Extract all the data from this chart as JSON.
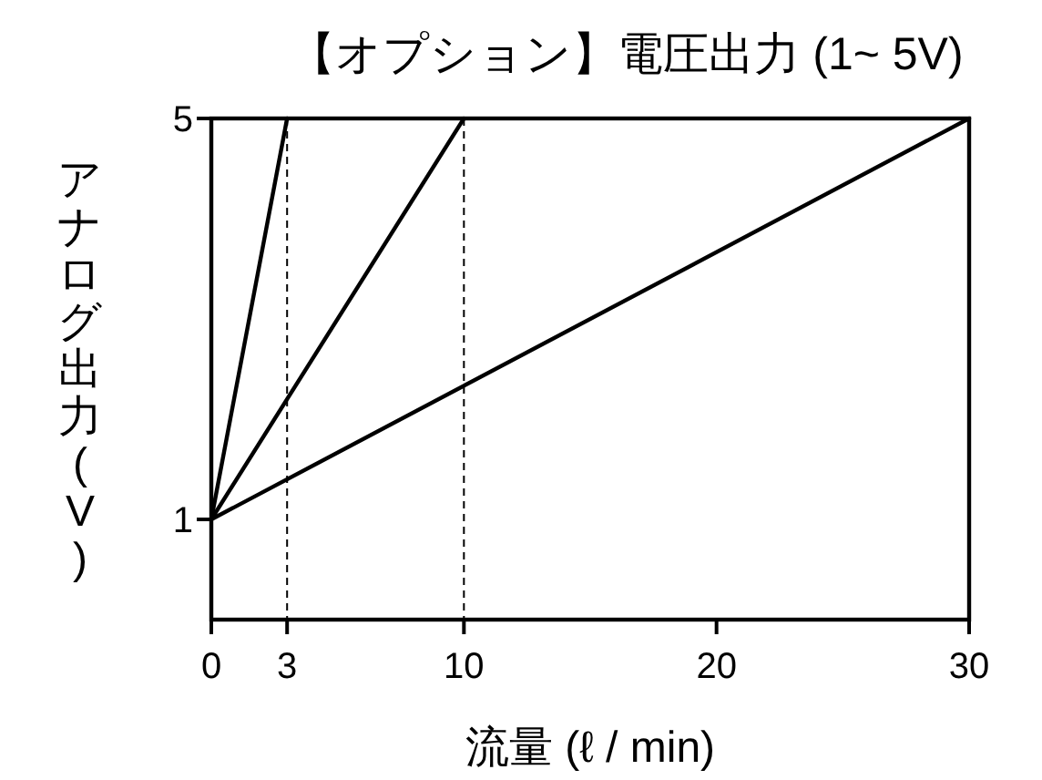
{
  "chart_data": {
    "type": "line",
    "title": "【オプション】電圧出力 (1~ 5V)",
    "xlabel": "流量 (ℓ / min)",
    "ylabel": "アナログ出力(V)",
    "series": [
      {
        "color": "#000000",
        "x": [
          0,
          3
        ],
        "values": [
          1,
          5
        ]
      },
      {
        "color": "#000000",
        "x": [
          0,
          10
        ],
        "values": [
          1,
          5
        ]
      },
      {
        "color": "#000000",
        "x": [
          0,
          30
        ],
        "values": [
          1,
          5
        ]
      }
    ],
    "xlim": [
      0,
      30
    ],
    "ylim": [
      0,
      5
    ],
    "xticks": [
      0,
      3,
      10,
      20,
      30
    ],
    "yticks": [
      1,
      5
    ],
    "ref_lines": [
      {
        "axis": "x",
        "value": 3,
        "color": "#000000",
        "line_style": "dashed"
      },
      {
        "axis": "x",
        "value": 10,
        "color": "#000000",
        "line_style": "dashed"
      }
    ],
    "grid": false,
    "marker": "none",
    "line_style": "solid"
  }
}
